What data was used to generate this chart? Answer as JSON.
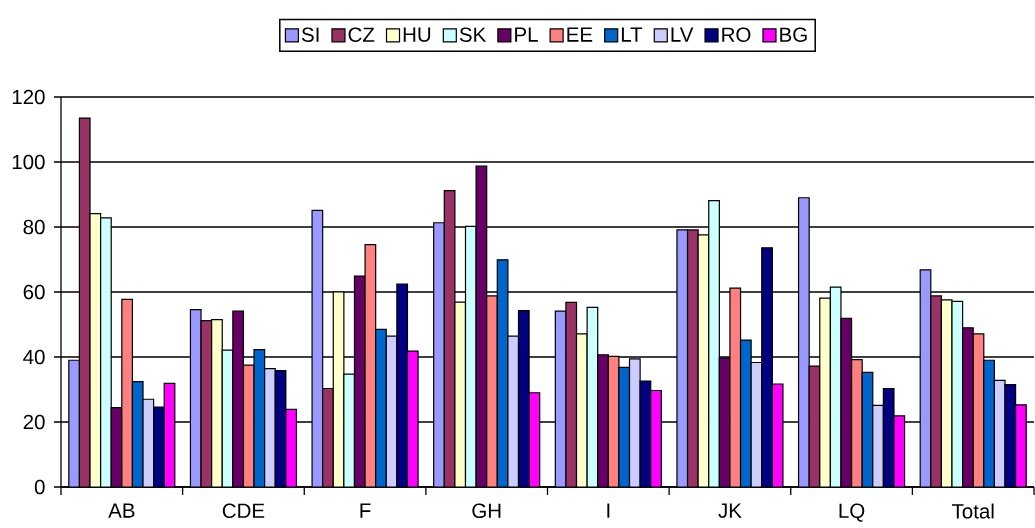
{
  "chart_data": {
    "type": "bar",
    "categories": [
      "AB",
      "CDE",
      "F",
      "GH",
      "I",
      "JK",
      "LQ",
      "Total"
    ],
    "series": [
      {
        "name": "SI",
        "color": "#9999ff",
        "values": [
          39.0,
          54.6,
          85.1,
          81.3,
          54.1,
          79.1,
          89.0,
          66.8
        ]
      },
      {
        "name": "CZ",
        "color": "#993366",
        "values": [
          113.5,
          51.2,
          30.3,
          91.2,
          56.8,
          79.1,
          37.2,
          58.8
        ]
      },
      {
        "name": "HU",
        "color": "#ffffcc",
        "values": [
          84.1,
          51.5,
          60.0,
          56.9,
          47.1,
          77.6,
          58.1,
          57.6
        ]
      },
      {
        "name": "SK",
        "color": "#ccffff",
        "values": [
          82.8,
          42.1,
          34.7,
          80.2,
          55.3,
          88.1,
          61.5,
          57.1
        ]
      },
      {
        "name": "PL",
        "color": "#660066",
        "values": [
          24.4,
          54.1,
          64.9,
          98.7,
          40.7,
          39.7,
          51.9,
          49.0
        ]
      },
      {
        "name": "EE",
        "color": "#ff8080",
        "values": [
          57.7,
          37.5,
          74.6,
          58.8,
          40.2,
          61.2,
          39.2,
          47.1
        ]
      },
      {
        "name": "LT",
        "color": "#0066cc",
        "values": [
          32.4,
          42.3,
          48.5,
          69.9,
          36.8,
          45.2,
          35.3,
          39.0
        ]
      },
      {
        "name": "LV",
        "color": "#ccccff",
        "values": [
          27.0,
          36.4,
          46.4,
          46.4,
          39.4,
          38.3,
          25.1,
          32.8
        ]
      },
      {
        "name": "RO",
        "color": "#000080",
        "values": [
          24.6,
          35.8,
          62.4,
          54.3,
          32.6,
          73.6,
          30.3,
          31.5
        ]
      },
      {
        "name": "BG",
        "color": "#ff00ff",
        "values": [
          31.9,
          23.9,
          41.8,
          29.0,
          29.7,
          31.7,
          21.9,
          25.3
        ]
      }
    ],
    "ylim": [
      0,
      120
    ],
    "yticks": [
      0,
      20,
      40,
      60,
      80,
      100,
      120
    ],
    "grid": "y",
    "legend": "top"
  }
}
